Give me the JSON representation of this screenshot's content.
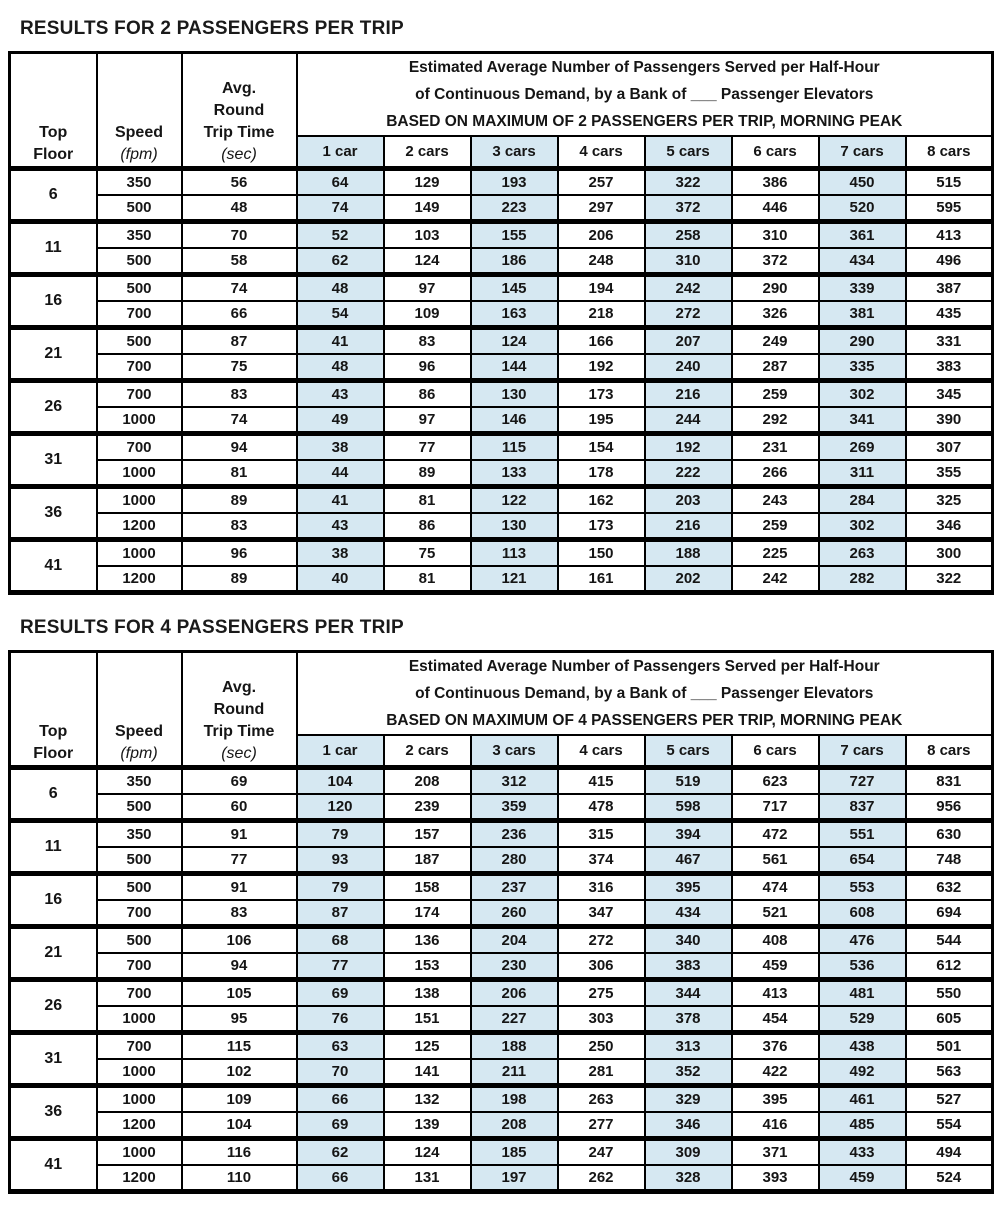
{
  "page": {
    "background": "#ffffff",
    "shaded_cell_color": "#d6e8f2",
    "border_color": "#000000"
  },
  "tables": [
    {
      "title": "RESULTS FOR 2 PASSENGERS PER TRIP",
      "header": {
        "top_floor": [
          "Top",
          "Floor"
        ],
        "speed": [
          "Speed",
          "(fpm)"
        ],
        "round_trip": [
          "Avg.",
          "Round",
          "Trip Time",
          "(sec)"
        ],
        "spanning": [
          "Estimated Average Number of Passengers Served per Half-Hour",
          "of Continuous Demand, by a Bank of ___ Passenger Elevators",
          "BASED ON MAXIMUM OF 2 PASSENGERS PER TRIP, MORNING PEAK"
        ],
        "car_columns": [
          "1 car",
          "2 cars",
          "3 cars",
          "4 cars",
          "5 cars",
          "6 cars",
          "7 cars",
          "8 cars"
        ]
      },
      "groups": [
        {
          "top_floor": "6",
          "rows": [
            {
              "speed": "350",
              "rtt": "56",
              "cars": [
                64,
                129,
                193,
                257,
                322,
                386,
                450,
                515
              ]
            },
            {
              "speed": "500",
              "rtt": "48",
              "cars": [
                74,
                149,
                223,
                297,
                372,
                446,
                520,
                595
              ]
            }
          ]
        },
        {
          "top_floor": "11",
          "rows": [
            {
              "speed": "350",
              "rtt": "70",
              "cars": [
                52,
                103,
                155,
                206,
                258,
                310,
                361,
                413
              ]
            },
            {
              "speed": "500",
              "rtt": "58",
              "cars": [
                62,
                124,
                186,
                248,
                310,
                372,
                434,
                496
              ]
            }
          ]
        },
        {
          "top_floor": "16",
          "rows": [
            {
              "speed": "500",
              "rtt": "74",
              "cars": [
                48,
                97,
                145,
                194,
                242,
                290,
                339,
                387
              ]
            },
            {
              "speed": "700",
              "rtt": "66",
              "cars": [
                54,
                109,
                163,
                218,
                272,
                326,
                381,
                435
              ]
            }
          ]
        },
        {
          "top_floor": "21",
          "rows": [
            {
              "speed": "500",
              "rtt": "87",
              "cars": [
                41,
                83,
                124,
                166,
                207,
                249,
                290,
                331
              ]
            },
            {
              "speed": "700",
              "rtt": "75",
              "cars": [
                48,
                96,
                144,
                192,
                240,
                287,
                335,
                383
              ]
            }
          ]
        },
        {
          "top_floor": "26",
          "rows": [
            {
              "speed": "700",
              "rtt": "83",
              "cars": [
                43,
                86,
                130,
                173,
                216,
                259,
                302,
                345
              ]
            },
            {
              "speed": "1000",
              "rtt": "74",
              "cars": [
                49,
                97,
                146,
                195,
                244,
                292,
                341,
                390
              ]
            }
          ]
        },
        {
          "top_floor": "31",
          "rows": [
            {
              "speed": "700",
              "rtt": "94",
              "cars": [
                38,
                77,
                115,
                154,
                192,
                231,
                269,
                307
              ]
            },
            {
              "speed": "1000",
              "rtt": "81",
              "cars": [
                44,
                89,
                133,
                178,
                222,
                266,
                311,
                355
              ]
            }
          ]
        },
        {
          "top_floor": "36",
          "rows": [
            {
              "speed": "1000",
              "rtt": "89",
              "cars": [
                41,
                81,
                122,
                162,
                203,
                243,
                284,
                325
              ]
            },
            {
              "speed": "1200",
              "rtt": "83",
              "cars": [
                43,
                86,
                130,
                173,
                216,
                259,
                302,
                346
              ]
            }
          ]
        },
        {
          "top_floor": "41",
          "rows": [
            {
              "speed": "1000",
              "rtt": "96",
              "cars": [
                38,
                75,
                113,
                150,
                188,
                225,
                263,
                300
              ]
            },
            {
              "speed": "1200",
              "rtt": "89",
              "cars": [
                40,
                81,
                121,
                161,
                202,
                242,
                282,
                322
              ]
            }
          ]
        }
      ]
    },
    {
      "title": "RESULTS FOR 4 PASSENGERS PER TRIP",
      "header": {
        "top_floor": [
          "Top",
          "Floor"
        ],
        "speed": [
          "Speed",
          "(fpm)"
        ],
        "round_trip": [
          "Avg.",
          "Round",
          "Trip Time",
          "(sec)"
        ],
        "spanning": [
          "Estimated Average Number of Passengers Served per Half-Hour",
          "of Continuous Demand, by a Bank of ___ Passenger Elevators",
          "BASED ON MAXIMUM OF 4 PASSENGERS PER TRIP, MORNING PEAK"
        ],
        "car_columns": [
          "1 car",
          "2 cars",
          "3 cars",
          "4 cars",
          "5 cars",
          "6 cars",
          "7 cars",
          "8 cars"
        ]
      },
      "groups": [
        {
          "top_floor": "6",
          "rows": [
            {
              "speed": "350",
              "rtt": "69",
              "cars": [
                104,
                208,
                312,
                415,
                519,
                623,
                727,
                831
              ]
            },
            {
              "speed": "500",
              "rtt": "60",
              "cars": [
                120,
                239,
                359,
                478,
                598,
                717,
                837,
                956
              ]
            }
          ]
        },
        {
          "top_floor": "11",
          "rows": [
            {
              "speed": "350",
              "rtt": "91",
              "cars": [
                79,
                157,
                236,
                315,
                394,
                472,
                551,
                630
              ]
            },
            {
              "speed": "500",
              "rtt": "77",
              "cars": [
                93,
                187,
                280,
                374,
                467,
                561,
                654,
                748
              ]
            }
          ]
        },
        {
          "top_floor": "16",
          "rows": [
            {
              "speed": "500",
              "rtt": "91",
              "cars": [
                79,
                158,
                237,
                316,
                395,
                474,
                553,
                632
              ]
            },
            {
              "speed": "700",
              "rtt": "83",
              "cars": [
                87,
                174,
                260,
                347,
                434,
                521,
                608,
                694
              ]
            }
          ]
        },
        {
          "top_floor": "21",
          "rows": [
            {
              "speed": "500",
              "rtt": "106",
              "cars": [
                68,
                136,
                204,
                272,
                340,
                408,
                476,
                544
              ]
            },
            {
              "speed": "700",
              "rtt": "94",
              "cars": [
                77,
                153,
                230,
                306,
                383,
                459,
                536,
                612
              ]
            }
          ]
        },
        {
          "top_floor": "26",
          "rows": [
            {
              "speed": "700",
              "rtt": "105",
              "cars": [
                69,
                138,
                206,
                275,
                344,
                413,
                481,
                550
              ]
            },
            {
              "speed": "1000",
              "rtt": "95",
              "cars": [
                76,
                151,
                227,
                303,
                378,
                454,
                529,
                605
              ]
            }
          ]
        },
        {
          "top_floor": "31",
          "rows": [
            {
              "speed": "700",
              "rtt": "115",
              "cars": [
                63,
                125,
                188,
                250,
                313,
                376,
                438,
                501
              ]
            },
            {
              "speed": "1000",
              "rtt": "102",
              "cars": [
                70,
                141,
                211,
                281,
                352,
                422,
                492,
                563
              ]
            }
          ]
        },
        {
          "top_floor": "36",
          "rows": [
            {
              "speed": "1000",
              "rtt": "109",
              "cars": [
                66,
                132,
                198,
                263,
                329,
                395,
                461,
                527
              ]
            },
            {
              "speed": "1200",
              "rtt": "104",
              "cars": [
                69,
                139,
                208,
                277,
                346,
                416,
                485,
                554
              ]
            }
          ]
        },
        {
          "top_floor": "41",
          "rows": [
            {
              "speed": "1000",
              "rtt": "116",
              "cars": [
                62,
                124,
                185,
                247,
                309,
                371,
                433,
                494
              ]
            },
            {
              "speed": "1200",
              "rtt": "110",
              "cars": [
                66,
                131,
                197,
                262,
                328,
                393,
                459,
                524
              ]
            }
          ]
        }
      ]
    }
  ]
}
